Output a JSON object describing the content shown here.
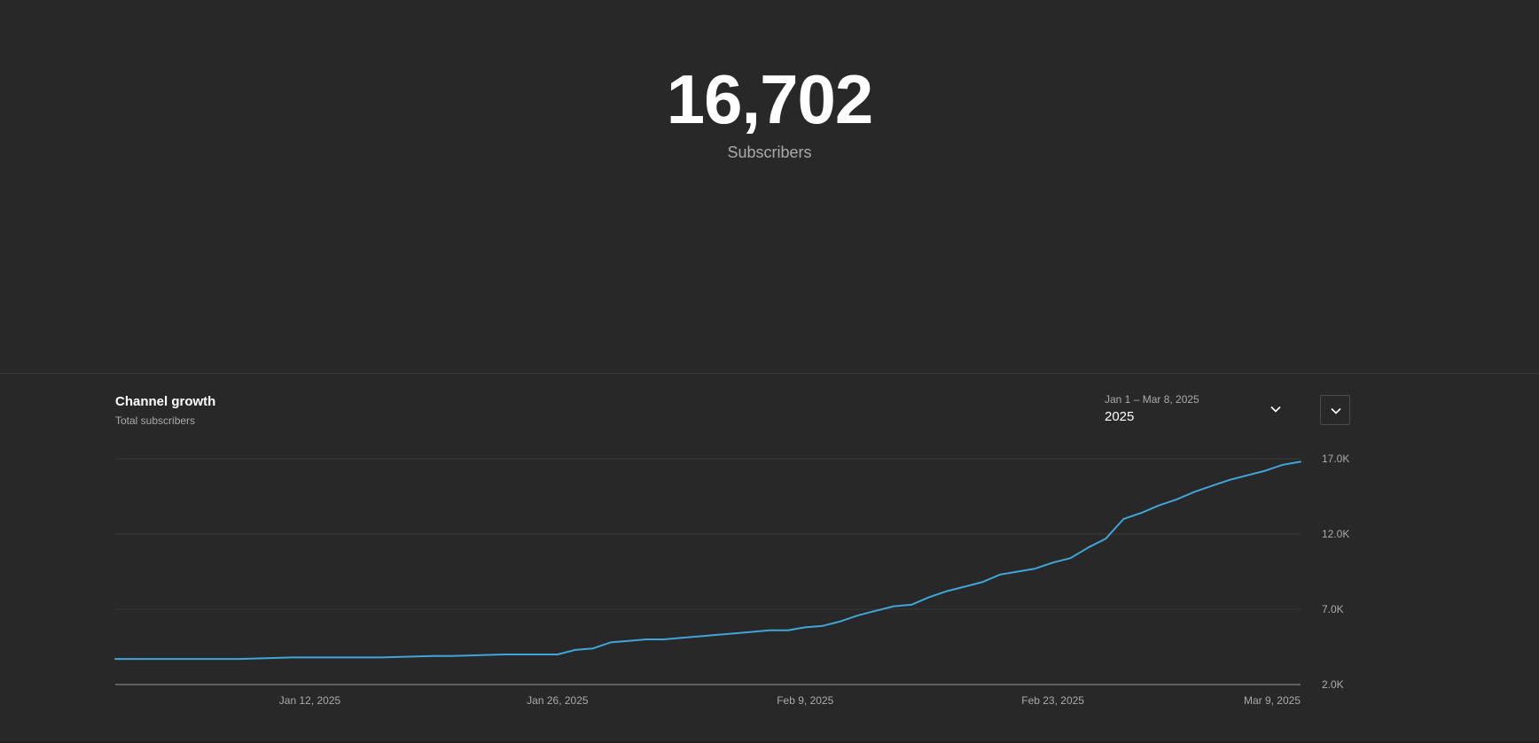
{
  "summary": {
    "subscriber_count": "16,702",
    "subscriber_label": "Subscribers"
  },
  "card": {
    "title": "Channel growth",
    "subtitle": "Total subscribers",
    "date_range": "Jan 1 – Mar 8, 2025",
    "period": "2025"
  },
  "icons": {
    "range_chevron": "chevron-down-icon",
    "collapse_chevron": "chevron-down-icon"
  },
  "colors": {
    "background": "#282828",
    "line": "#3ea6d8",
    "grid": "#3a3a3a",
    "axis_text": "#aaaaaa"
  },
  "chart_data": {
    "type": "line",
    "title": "",
    "xlabel": "",
    "ylabel": "",
    "x_tick_labels": [
      "Jan 12, 2025",
      "Jan 26, 2025",
      "Feb 9, 2025",
      "Feb 23, 2025",
      "Mar 9, 2025"
    ],
    "y_tick_labels": [
      "2.0K",
      "7.0K",
      "12.0K",
      "17.0K"
    ],
    "y_ticks": [
      2000,
      7000,
      12000,
      17000
    ],
    "ylim": [
      2000,
      17000
    ],
    "x_range": [
      "2025-01-01",
      "2025-03-09"
    ],
    "grid": true,
    "series": [
      {
        "x": [
          "2025-01-01",
          "2025-01-08",
          "2025-01-11",
          "2025-01-16",
          "2025-01-19",
          "2025-01-20",
          "2025-01-23",
          "2025-01-24",
          "2025-01-26",
          "2025-01-27",
          "2025-01-28",
          "2025-01-29",
          "2025-01-30",
          "2025-01-31",
          "2025-02-01",
          "2025-02-02",
          "2025-02-03",
          "2025-02-04",
          "2025-02-05",
          "2025-02-06",
          "2025-02-07",
          "2025-02-08",
          "2025-02-09",
          "2025-02-10",
          "2025-02-11",
          "2025-02-12",
          "2025-02-13",
          "2025-02-14",
          "2025-02-15",
          "2025-02-16",
          "2025-02-17",
          "2025-02-18",
          "2025-02-19",
          "2025-02-20",
          "2025-02-21",
          "2025-02-22",
          "2025-02-23",
          "2025-02-24",
          "2025-02-25",
          "2025-02-26",
          "2025-02-27",
          "2025-02-28",
          "2025-03-01",
          "2025-03-02",
          "2025-03-03",
          "2025-03-04",
          "2025-03-05",
          "2025-03-06",
          "2025-03-07",
          "2025-03-08",
          "2025-03-09"
        ],
        "values": [
          3700,
          3700,
          3800,
          3800,
          3900,
          3900,
          4000,
          4000,
          4000,
          4300,
          4400,
          4800,
          4900,
          5000,
          5000,
          5100,
          5200,
          5300,
          5400,
          5500,
          5600,
          5600,
          5800,
          5900,
          6200,
          6600,
          6900,
          7200,
          7300,
          7800,
          8200,
          8500,
          8800,
          9300,
          9500,
          9700,
          10100,
          10400,
          11100,
          11700,
          13000,
          13400,
          13900,
          14300,
          14800,
          15200,
          15600,
          15900,
          16200,
          16600,
          16800
        ]
      }
    ]
  }
}
